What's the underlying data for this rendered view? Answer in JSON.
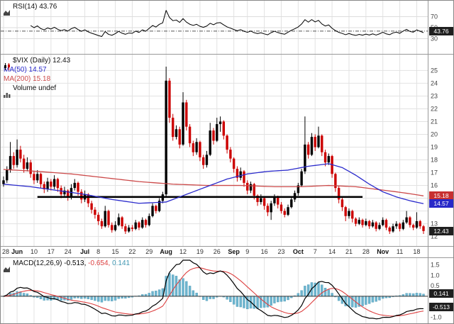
{
  "legend": {
    "rsi_label": "RSI(14)",
    "rsi_value": "43.76",
    "symbol": "$VIX (Daily)",
    "symbol_value": "12.43",
    "ma50": "MA(50) 14.57",
    "ma200": "MA(200) 15.18",
    "volume_label": "Volume",
    "volume_value": "undef",
    "macd_label": "MACD(12,26,9)",
    "macd_v1": "-0.513,",
    "macd_v2": "-0.654,",
    "macd_v3": "0.141"
  },
  "badges": {
    "rsi": "43.76",
    "ma200": "15.18",
    "ma50": "14.57",
    "price": "12.43",
    "macd_hist": "0.141",
    "macd_line": "-0.513"
  },
  "colors": {
    "up": "#000000",
    "down": "#cc0000",
    "ma50": "#2b2bcc",
    "ma200": "#cc4a4a",
    "macd_line": "#000000",
    "signal": "#dd4040",
    "hist_fill": "#6db5cf",
    "hist_stroke": "#4f99b5",
    "grid": "#e2e2e2",
    "axis_text": "#444444",
    "trendline": "#000000",
    "panel_border": "#999999"
  },
  "chart_data": {
    "type": "candlestick",
    "title": "$VIX (Daily)",
    "symbol": "$VIX",
    "timeframe": "Daily",
    "last": 12.43,
    "ylim": [
      11.7,
      25.8
    ],
    "price_ticks": [
      25,
      24,
      23,
      22,
      21,
      20,
      19,
      18,
      17,
      16,
      13,
      12
    ],
    "x_ticks": [
      {
        "i": 0,
        "label": "28"
      },
      {
        "i": 4,
        "label": "Jun",
        "month": true
      },
      {
        "i": 9,
        "label": "10"
      },
      {
        "i": 14,
        "label": "17"
      },
      {
        "i": 19,
        "label": "24"
      },
      {
        "i": 24,
        "label": "Jul",
        "month": true
      },
      {
        "i": 28,
        "label": "8"
      },
      {
        "i": 33,
        "label": "15"
      },
      {
        "i": 38,
        "label": "22"
      },
      {
        "i": 43,
        "label": "29"
      },
      {
        "i": 48,
        "label": "Aug",
        "month": true
      },
      {
        "i": 53,
        "label": "12"
      },
      {
        "i": 58,
        "label": "19"
      },
      {
        "i": 63,
        "label": "26"
      },
      {
        "i": 68,
        "label": "Sep",
        "month": true
      },
      {
        "i": 72,
        "label": "9"
      },
      {
        "i": 77,
        "label": "16"
      },
      {
        "i": 82,
        "label": "23"
      },
      {
        "i": 87,
        "label": "Oct",
        "month": true
      },
      {
        "i": 92,
        "label": "7"
      },
      {
        "i": 97,
        "label": "14"
      },
      {
        "i": 102,
        "label": "21"
      },
      {
        "i": 107,
        "label": "28"
      },
      {
        "i": 112,
        "label": "Nov",
        "month": true
      },
      {
        "i": 117,
        "label": "11"
      },
      {
        "i": 122,
        "label": "18"
      }
    ],
    "trendline": {
      "value": 15.1,
      "from": 10,
      "to": 106
    },
    "ohlc": [
      [
        16.1,
        16.7,
        15.9,
        16.4
      ],
      [
        16.4,
        17.5,
        16.2,
        17.2
      ],
      [
        17.2,
        19.4,
        17.0,
        18.3
      ],
      [
        18.3,
        18.6,
        17.3,
        17.6
      ],
      [
        17.6,
        19.6,
        17.4,
        18.8
      ],
      [
        18.8,
        19.1,
        17.8,
        18.1
      ],
      [
        18.1,
        18.4,
        17.0,
        17.3
      ],
      [
        17.3,
        18.2,
        17.1,
        17.8
      ],
      [
        17.8,
        18.0,
        16.6,
        16.9
      ],
      [
        16.9,
        17.1,
        16.1,
        16.4
      ],
      [
        16.4,
        17.2,
        16.2,
        16.9
      ],
      [
        16.9,
        17.0,
        15.8,
        16.1
      ],
      [
        16.1,
        16.3,
        15.4,
        15.7
      ],
      [
        15.7,
        16.6,
        15.5,
        16.3
      ],
      [
        16.3,
        16.5,
        15.6,
        15.9
      ],
      [
        15.9,
        16.8,
        15.7,
        16.5
      ],
      [
        16.5,
        16.6,
        15.5,
        15.8
      ],
      [
        15.8,
        16.0,
        15.0,
        15.3
      ],
      [
        15.3,
        15.9,
        15.1,
        15.6
      ],
      [
        15.6,
        15.7,
        14.8,
        15.1
      ],
      [
        15.1,
        16.1,
        14.9,
        15.8
      ],
      [
        15.8,
        16.5,
        15.6,
        16.2
      ],
      [
        16.2,
        16.3,
        15.2,
        15.5
      ],
      [
        15.5,
        15.7,
        14.6,
        14.9
      ],
      [
        14.9,
        15.6,
        14.7,
        15.3
      ],
      [
        15.3,
        15.4,
        14.3,
        14.6
      ],
      [
        14.6,
        14.8,
        13.8,
        14.1
      ],
      [
        14.1,
        14.3,
        13.4,
        13.7
      ],
      [
        13.7,
        13.9,
        12.9,
        13.2
      ],
      [
        13.2,
        13.4,
        12.6,
        12.8
      ],
      [
        12.8,
        14.4,
        12.7,
        14.0
      ],
      [
        14.0,
        14.1,
        12.7,
        12.9
      ],
      [
        12.9,
        13.1,
        12.3,
        12.5
      ],
      [
        12.5,
        13.2,
        12.4,
        12.9
      ],
      [
        12.9,
        13.8,
        12.8,
        13.5
      ],
      [
        13.5,
        13.6,
        12.6,
        12.8
      ],
      [
        12.8,
        13.0,
        12.2,
        12.4
      ],
      [
        12.4,
        12.9,
        12.3,
        12.7
      ],
      [
        12.7,
        12.9,
        12.4,
        12.6
      ],
      [
        12.6,
        13.3,
        12.5,
        13.1
      ],
      [
        13.1,
        13.2,
        12.5,
        12.7
      ],
      [
        12.7,
        13.5,
        12.6,
        13.3
      ],
      [
        13.3,
        13.4,
        12.7,
        12.9
      ],
      [
        12.9,
        13.8,
        12.8,
        13.6
      ],
      [
        13.6,
        14.6,
        13.5,
        14.4
      ],
      [
        14.4,
        14.5,
        13.8,
        14.0
      ],
      [
        14.0,
        15.0,
        13.9,
        14.8
      ],
      [
        14.8,
        15.5,
        14.6,
        15.3
      ],
      [
        15.3,
        25.3,
        15.1,
        24.2
      ],
      [
        24.2,
        24.4,
        20.9,
        21.3
      ],
      [
        21.3,
        21.6,
        19.5,
        19.8
      ],
      [
        19.8,
        20.7,
        19.6,
        20.4
      ],
      [
        20.4,
        20.6,
        18.9,
        19.2
      ],
      [
        19.2,
        23.3,
        19.1,
        22.5
      ],
      [
        22.5,
        22.7,
        20.3,
        20.6
      ],
      [
        20.6,
        20.8,
        19.0,
        19.3
      ],
      [
        19.3,
        19.5,
        18.3,
        18.6
      ],
      [
        18.6,
        19.7,
        18.4,
        19.4
      ],
      [
        19.4,
        19.5,
        17.9,
        18.2
      ],
      [
        18.2,
        18.4,
        17.3,
        17.6
      ],
      [
        17.6,
        18.7,
        17.4,
        18.4
      ],
      [
        18.4,
        20.9,
        18.3,
        20.3
      ],
      [
        20.3,
        20.5,
        19.2,
        19.5
      ],
      [
        19.5,
        21.3,
        19.4,
        20.8
      ],
      [
        20.8,
        21.4,
        20.2,
        21.0
      ],
      [
        21.0,
        21.1,
        19.6,
        19.9
      ],
      [
        19.9,
        20.0,
        18.5,
        18.8
      ],
      [
        18.8,
        19.0,
        17.8,
        18.1
      ],
      [
        18.1,
        18.2,
        17.0,
        17.3
      ],
      [
        17.3,
        17.5,
        16.3,
        16.6
      ],
      [
        16.6,
        17.4,
        16.4,
        17.1
      ],
      [
        17.1,
        17.2,
        15.9,
        16.2
      ],
      [
        16.2,
        16.4,
        15.3,
        15.6
      ],
      [
        15.6,
        16.3,
        15.4,
        16.1
      ],
      [
        16.1,
        16.2,
        14.9,
        15.2
      ],
      [
        15.2,
        15.3,
        14.4,
        14.7
      ],
      [
        14.7,
        15.3,
        14.5,
        15.0
      ],
      [
        15.0,
        15.1,
        14.1,
        14.4
      ],
      [
        14.4,
        14.6,
        13.6,
        13.9
      ],
      [
        13.9,
        14.8,
        13.3,
        14.6
      ],
      [
        14.6,
        15.3,
        14.4,
        15.1
      ],
      [
        15.1,
        15.2,
        14.2,
        14.5
      ],
      [
        14.5,
        14.7,
        13.8,
        14.0
      ],
      [
        14.0,
        14.2,
        13.5,
        13.7
      ],
      [
        13.7,
        14.5,
        13.6,
        14.3
      ],
      [
        14.3,
        15.1,
        14.2,
        14.9
      ],
      [
        14.9,
        15.6,
        14.7,
        15.4
      ],
      [
        15.4,
        16.2,
        15.2,
        16.0
      ],
      [
        16.0,
        17.3,
        15.9,
        17.1
      ],
      [
        17.1,
        21.4,
        16.9,
        19.2
      ],
      [
        19.2,
        19.4,
        18.1,
        18.4
      ],
      [
        18.4,
        20.1,
        18.3,
        19.8
      ],
      [
        19.8,
        20.0,
        18.7,
        19.0
      ],
      [
        19.0,
        20.6,
        18.9,
        19.9
      ],
      [
        19.9,
        20.0,
        18.3,
        18.6
      ],
      [
        18.6,
        18.8,
        17.5,
        17.8
      ],
      [
        17.8,
        18.5,
        17.6,
        18.3
      ],
      [
        18.3,
        18.4,
        16.6,
        16.9
      ],
      [
        16.9,
        17.0,
        15.5,
        15.8
      ],
      [
        15.8,
        16.0,
        14.6,
        14.9
      ],
      [
        14.9,
        15.1,
        14.0,
        14.3
      ],
      [
        14.3,
        14.4,
        13.2,
        13.6
      ],
      [
        13.6,
        14.2,
        13.4,
        14.0
      ],
      [
        14.0,
        14.1,
        13.1,
        13.4
      ],
      [
        13.4,
        13.5,
        12.8,
        13.0
      ],
      [
        13.0,
        13.5,
        12.9,
        13.3
      ],
      [
        13.3,
        13.4,
        12.7,
        12.9
      ],
      [
        12.9,
        13.4,
        12.8,
        13.2
      ],
      [
        13.2,
        13.3,
        12.6,
        12.8
      ],
      [
        12.8,
        13.3,
        12.7,
        13.1
      ],
      [
        13.1,
        13.2,
        12.4,
        12.6
      ],
      [
        12.6,
        13.1,
        12.5,
        12.9
      ],
      [
        12.9,
        13.5,
        12.8,
        13.3
      ],
      [
        13.3,
        13.4,
        12.5,
        12.7
      ],
      [
        12.7,
        12.8,
        12.2,
        12.4
      ],
      [
        12.4,
        13.0,
        12.3,
        12.8
      ],
      [
        12.8,
        13.2,
        12.6,
        13.0
      ],
      [
        13.0,
        13.1,
        12.4,
        12.6
      ],
      [
        12.6,
        13.3,
        12.5,
        13.1
      ],
      [
        13.1,
        14.0,
        13.0,
        13.5
      ],
      [
        13.5,
        13.6,
        12.7,
        12.9
      ],
      [
        12.9,
        13.0,
        12.5,
        12.7
      ],
      [
        12.7,
        13.9,
        12.6,
        13.2
      ],
      [
        13.2,
        13.3,
        12.6,
        12.8
      ],
      [
        12.8,
        12.9,
        12.2,
        12.43
      ]
    ],
    "ma50": {
      "period": 50,
      "last": 14.57,
      "points": [
        [
          0,
          16.1
        ],
        [
          8,
          15.9
        ],
        [
          16,
          15.6
        ],
        [
          24,
          15.3
        ],
        [
          32,
          14.9
        ],
        [
          40,
          14.6
        ],
        [
          48,
          14.7
        ],
        [
          54,
          15.3
        ],
        [
          60,
          15.9
        ],
        [
          66,
          16.5
        ],
        [
          72,
          16.9
        ],
        [
          78,
          17.1
        ],
        [
          84,
          17.2
        ],
        [
          90,
          17.5
        ],
        [
          96,
          17.7
        ],
        [
          100,
          17.4
        ],
        [
          104,
          16.8
        ],
        [
          108,
          16.1
        ],
        [
          112,
          15.5
        ],
        [
          116,
          15.1
        ],
        [
          120,
          14.8
        ],
        [
          124,
          14.57
        ]
      ]
    },
    "ma200": {
      "period": 200,
      "last": 15.18,
      "points": [
        [
          0,
          17.25
        ],
        [
          10,
          17.1
        ],
        [
          20,
          16.9
        ],
        [
          30,
          16.6
        ],
        [
          40,
          16.3
        ],
        [
          50,
          16.1
        ],
        [
          60,
          16.0
        ],
        [
          70,
          16.0
        ],
        [
          80,
          15.9
        ],
        [
          88,
          15.9
        ],
        [
          96,
          16.0
        ],
        [
          104,
          15.9
        ],
        [
          110,
          15.7
        ],
        [
          116,
          15.5
        ],
        [
          120,
          15.35
        ],
        [
          124,
          15.18
        ]
      ]
    },
    "rsi": {
      "period": 14,
      "last": 43.76,
      "ticks": [
        70,
        50,
        30
      ],
      "ylim": [
        5,
        95
      ],
      "level_line": 43.76
    },
    "macd": {
      "fast": 12,
      "slow": 26,
      "signal": 9,
      "last": -0.513,
      "signal_last": -0.654,
      "hist_last": 0.141,
      "ticks": [
        1.5,
        1.0,
        0.5,
        -1.0
      ],
      "ylim": [
        -1.15,
        1.65
      ]
    },
    "volume": "undef"
  }
}
